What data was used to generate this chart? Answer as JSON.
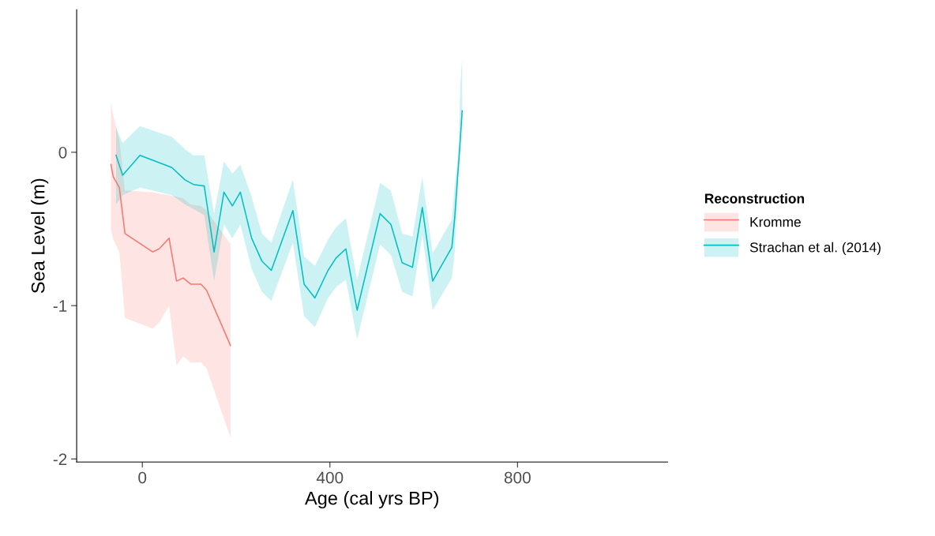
{
  "chart_data": {
    "type": "line",
    "xlabel": "Age (cal yrs BP)",
    "ylabel": "Sea Level (m)",
    "legend_title": "Reconstruction",
    "xlim": [
      -140,
      1120
    ],
    "xticks": [
      0,
      400,
      800
    ],
    "ylim": [
      -2.02,
      0.93
    ],
    "yticks": [
      -2,
      -1,
      0
    ],
    "grid": false,
    "legend": "right",
    "series": [
      {
        "name": "Kromme",
        "color": "#f8766d",
        "x": [
          -67,
          -62,
          -49,
          -37,
          22,
          36,
          57,
          73,
          87,
          103,
          125,
          137,
          188
        ],
        "values": [
          -0.08,
          -0.16,
          -0.23,
          -0.53,
          -0.65,
          -0.63,
          -0.56,
          -0.84,
          -0.82,
          -0.86,
          -0.86,
          -0.9,
          -1.26
        ],
        "upper": [
          0.32,
          0.24,
          0.08,
          -0.25,
          -0.26,
          -0.27,
          -0.28,
          -0.29,
          -0.3,
          -0.34,
          -0.35,
          -0.38,
          -0.6
        ],
        "lower": [
          -0.5,
          -0.57,
          -0.65,
          -1.08,
          -1.15,
          -1.11,
          -1.0,
          -1.39,
          -1.33,
          -1.37,
          -1.37,
          -1.41,
          -1.86
        ]
      },
      {
        "name": "Strachan et al. (2014)",
        "color": "#00bfc4",
        "x": [
          -56,
          -42,
          -5,
          63,
          91,
          109,
          132,
          153,
          174,
          192,
          209,
          233,
          255,
          275,
          321,
          345,
          368,
          396,
          413,
          434,
          458,
          507,
          530,
          554,
          576,
          597,
          619,
          660,
          666,
          672,
          675,
          678,
          682
        ],
        "values": [
          -0.02,
          -0.15,
          -0.02,
          -0.1,
          -0.18,
          -0.21,
          -0.22,
          -0.65,
          -0.26,
          -0.35,
          -0.26,
          -0.56,
          -0.71,
          -0.77,
          -0.38,
          -0.86,
          -0.95,
          -0.77,
          -0.69,
          -0.63,
          -1.03,
          -0.4,
          -0.47,
          -0.72,
          -0.75,
          -0.36,
          -0.84,
          -0.62,
          -0.43,
          -0.17,
          -0.05,
          0.08,
          0.27
        ],
        "upper": [
          0.16,
          0.06,
          0.17,
          0.1,
          0.02,
          -0.02,
          -0.02,
          -0.4,
          -0.06,
          -0.14,
          -0.08,
          -0.29,
          -0.53,
          -0.59,
          -0.18,
          -0.68,
          -0.74,
          -0.57,
          -0.49,
          -0.43,
          -0.83,
          -0.2,
          -0.25,
          -0.53,
          -0.55,
          -0.16,
          -0.66,
          -0.44,
          -0.21,
          -0.05,
          0.1,
          0.43,
          0.62
        ],
        "lower": [
          -0.34,
          -0.28,
          -0.23,
          -0.28,
          -0.34,
          -0.37,
          -0.41,
          -0.84,
          -0.47,
          -0.56,
          -0.47,
          -0.76,
          -0.91,
          -0.97,
          -0.59,
          -1.07,
          -1.14,
          -0.95,
          -0.88,
          -0.83,
          -1.22,
          -0.6,
          -0.67,
          -0.91,
          -0.94,
          -0.54,
          -1.03,
          -0.82,
          -0.65,
          -0.29,
          -0.07,
          0.12,
          0.21
        ]
      }
    ]
  }
}
